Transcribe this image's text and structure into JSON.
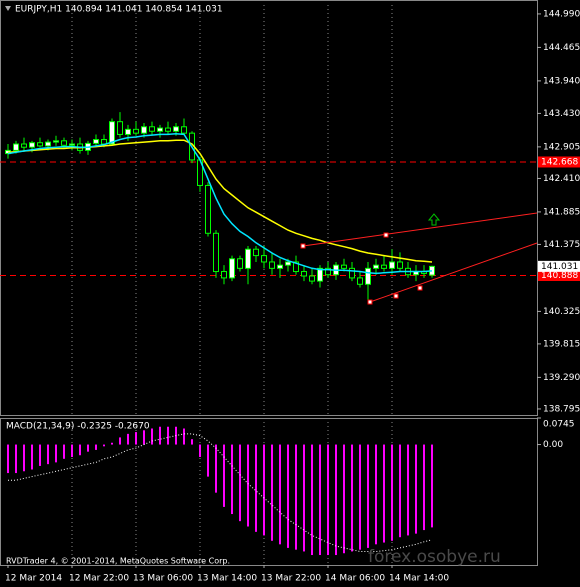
{
  "chart_data": {
    "type": "candlestick",
    "title": "EURJPY,H1  140.894 141.041 140.854 141.031",
    "categories": [
      "12 Mar 2014",
      null,
      null,
      null,
      null,
      null,
      null,
      null,
      "12 Mar 22:00",
      null,
      null,
      null,
      null,
      null,
      null,
      null,
      "13 Mar 06:00",
      null,
      null,
      null,
      null,
      null,
      null,
      null,
      "13 Mar 14:00",
      null,
      null,
      null,
      null,
      null,
      null,
      null,
      "13 Mar 22:00",
      null,
      null,
      null,
      null,
      null,
      null,
      null,
      "14 Mar 06:00",
      null,
      null,
      null,
      null,
      null,
      null,
      null,
      "14 Mar 14:00",
      null,
      null,
      null,
      null,
      null
    ],
    "open": [
      142.8,
      142.85,
      142.95,
      142.9,
      142.97,
      142.92,
      142.98,
      143.0,
      142.93,
      142.95,
      142.85,
      142.96,
      143.02,
      142.95,
      143.3,
      143.1,
      143.18,
      143.12,
      143.22,
      143.15,
      143.2,
      143.15,
      143.22,
      143.12,
      142.7,
      142.3,
      141.55,
      140.95,
      140.85,
      141.15,
      141.0,
      141.3,
      141.2,
      141.1,
      141.0,
      141.05,
      141.1,
      140.95,
      140.88,
      140.8,
      141.0,
      140.9,
      141.05,
      141.0,
      140.85,
      140.75,
      141.0,
      141.05,
      141.0,
      141.1,
      141.0,
      140.9,
      140.95,
      140.894
    ],
    "high": [
      142.95,
      143.0,
      143.05,
      143.0,
      143.05,
      143.02,
      143.08,
      143.05,
      143.02,
      143.05,
      143.0,
      143.1,
      143.1,
      143.35,
      143.45,
      143.25,
      143.3,
      143.28,
      143.3,
      143.25,
      143.3,
      143.28,
      143.35,
      143.15,
      142.75,
      142.35,
      141.6,
      141.05,
      141.2,
      141.2,
      141.35,
      141.35,
      141.35,
      141.25,
      141.15,
      141.15,
      141.2,
      141.05,
      141.0,
      141.05,
      141.1,
      141.1,
      141.15,
      141.1,
      140.95,
      141.1,
      141.15,
      141.2,
      141.3,
      141.25,
      141.1,
      141.05,
      141.05,
      141.041
    ],
    "low": [
      142.72,
      142.8,
      142.85,
      142.82,
      142.9,
      142.85,
      142.92,
      142.88,
      142.85,
      142.8,
      142.78,
      142.9,
      142.9,
      142.92,
      143.05,
      143.0,
      143.08,
      143.05,
      143.1,
      143.05,
      143.1,
      143.08,
      143.1,
      142.65,
      142.2,
      141.5,
      140.85,
      140.75,
      140.8,
      140.95,
      140.75,
      141.1,
      141.0,
      140.9,
      140.85,
      140.95,
      140.9,
      140.8,
      140.75,
      140.7,
      140.85,
      140.82,
      140.95,
      140.8,
      140.7,
      140.45,
      140.9,
      140.95,
      140.9,
      140.95,
      140.85,
      140.8,
      140.85,
      140.854
    ],
    "close": [
      142.85,
      142.95,
      142.9,
      142.97,
      142.92,
      142.98,
      143.0,
      142.93,
      142.95,
      142.85,
      142.96,
      143.02,
      142.95,
      143.3,
      143.1,
      143.18,
      143.12,
      143.22,
      143.15,
      143.2,
      143.15,
      143.22,
      143.12,
      142.7,
      142.3,
      141.55,
      140.95,
      140.85,
      141.15,
      141.0,
      141.3,
      141.2,
      141.1,
      141.0,
      141.05,
      141.1,
      140.95,
      140.88,
      140.8,
      141.0,
      140.9,
      141.05,
      141.0,
      140.85,
      140.75,
      141.0,
      141.05,
      141.0,
      141.1,
      141.0,
      140.9,
      140.95,
      140.92,
      141.031
    ],
    "colors": {
      "bull_body": "#ffffff",
      "bear_body": "#000000",
      "wick": "#00ff00"
    },
    "moving_averages": [
      {
        "color": "#ffff00",
        "values": [
          142.82,
          142.83,
          142.84,
          142.85,
          142.86,
          142.87,
          142.88,
          142.88,
          142.89,
          142.89,
          142.9,
          142.91,
          142.92,
          142.93,
          142.95,
          142.96,
          142.97,
          142.98,
          142.99,
          143.0,
          143.0,
          143.01,
          143.01,
          142.95,
          142.8,
          142.6,
          142.4,
          142.25,
          142.15,
          142.05,
          141.95,
          141.88,
          141.81,
          141.74,
          141.67,
          141.6,
          141.55,
          141.51,
          141.47,
          141.44,
          141.4,
          141.37,
          141.34,
          141.31,
          141.27,
          141.24,
          141.22,
          141.2,
          141.18,
          141.16,
          141.14,
          141.12,
          141.11,
          141.1
        ]
      },
      {
        "color": "#00e5ff",
        "values": [
          142.8,
          142.82,
          142.84,
          142.86,
          142.88,
          142.89,
          142.9,
          142.91,
          142.91,
          142.9,
          142.9,
          142.92,
          142.94,
          142.98,
          143.02,
          143.05,
          143.06,
          143.08,
          143.09,
          143.1,
          143.1,
          143.11,
          143.1,
          142.9,
          142.7,
          142.4,
          142.1,
          141.85,
          141.7,
          141.58,
          141.5,
          141.4,
          141.32,
          141.24,
          141.17,
          141.12,
          141.08,
          141.04,
          141.0,
          140.98,
          140.98,
          140.97,
          140.97,
          140.96,
          140.95,
          140.93,
          140.92,
          140.93,
          140.94,
          140.95,
          140.95,
          140.95,
          140.95,
          140.96
        ]
      }
    ],
    "levels": [
      {
        "value": 142.668,
        "color": "#ff0000"
      },
      {
        "value": 140.888,
        "color": "#ff0000"
      }
    ],
    "last_price": 141.031,
    "ylim": [
      138.7,
      145.13
    ],
    "yticks": [
      {
        "value": 144.99,
        "label": "144.990"
      },
      144.465,
      {
        "value": 143.94,
        "label": "143.940"
      },
      {
        "value": 143.43,
        "label": "143.430"
      },
      142.905,
      {
        "value": 142.41,
        "label": "142.410"
      },
      141.885,
      141.375,
      140.325,
      139.815,
      {
        "value": 139.29,
        "label": "139.290"
      },
      138.795
    ],
    "grid": true,
    "indicator": {
      "type": "histogram",
      "title": "MACD(21,34,9) -0.2325 -0.2670",
      "color": "#ff00ff",
      "signal_color": "#ffffff",
      "values": [
        -0.08,
        -0.08,
        -0.075,
        -0.07,
        -0.06,
        -0.055,
        -0.05,
        -0.04,
        -0.035,
        -0.03,
        -0.02,
        -0.015,
        -0.005,
        0.005,
        0.02,
        0.03,
        0.035,
        0.04,
        0.045,
        0.05,
        0.05,
        0.05,
        0.045,
        0.015,
        -0.035,
        -0.09,
        -0.135,
        -0.175,
        -0.195,
        -0.215,
        -0.23,
        -0.245,
        -0.255,
        -0.27,
        -0.28,
        -0.29,
        -0.295,
        -0.3,
        -0.31,
        -0.31,
        -0.31,
        -0.31,
        -0.305,
        -0.3,
        -0.295,
        -0.29,
        -0.28,
        -0.275,
        -0.27,
        -0.26,
        -0.255,
        -0.25,
        -0.24,
        -0.2325
      ],
      "signal": [
        -0.1,
        -0.1,
        -0.095,
        -0.09,
        -0.085,
        -0.08,
        -0.075,
        -0.07,
        -0.065,
        -0.06,
        -0.055,
        -0.05,
        -0.04,
        -0.035,
        -0.025,
        -0.015,
        -0.01,
        0.0,
        0.01,
        0.015,
        0.02,
        0.025,
        0.03,
        0.03,
        0.025,
        0.01,
        -0.01,
        -0.035,
        -0.06,
        -0.085,
        -0.11,
        -0.13,
        -0.15,
        -0.17,
        -0.19,
        -0.21,
        -0.225,
        -0.24,
        -0.255,
        -0.265,
        -0.275,
        -0.285,
        -0.29,
        -0.295,
        -0.3,
        -0.3,
        -0.3,
        -0.298,
        -0.295,
        -0.29,
        -0.285,
        -0.28,
        -0.273,
        -0.267
      ],
      "ylim": [
        -0.338,
        0.0745
      ],
      "yticks": [
        0.0745,
        {
          "value": 0,
          "label": "0.00"
        }
      ]
    },
    "copyright": "RVDTrader 4, © 2001-2014, MetaQuotes Software Corp.",
    "watermark": "forex.osobye.ru"
  }
}
